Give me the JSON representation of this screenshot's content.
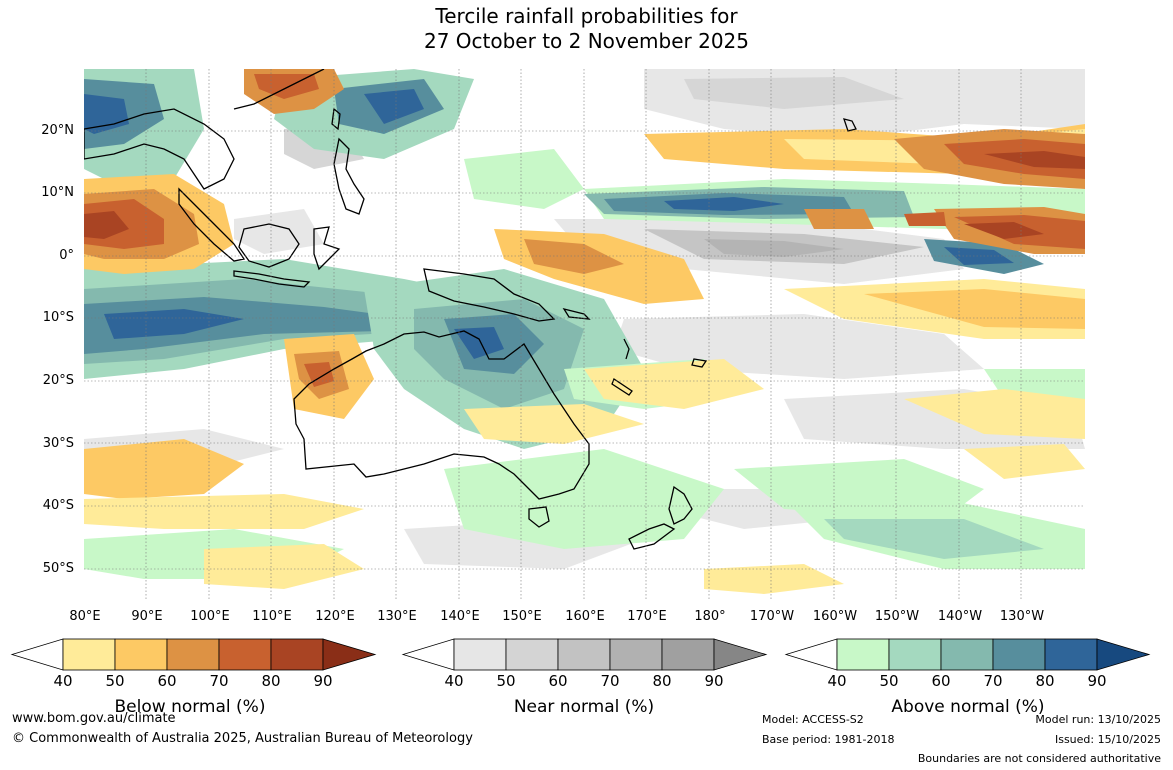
{
  "title": {
    "line1": "Tercile rainfall probabilities for",
    "line2": "27 October to 2 November 2025"
  },
  "map": {
    "lat_labels": [
      "20°N",
      "10°N",
      "0°",
      "10°S",
      "20°S",
      "30°S",
      "40°S",
      "50°S"
    ],
    "lon_labels": [
      "80°E",
      "90°E",
      "100°E",
      "110°E",
      "120°E",
      "130°E",
      "140°E",
      "150°E",
      "160°E",
      "170°E",
      "180°",
      "170°W",
      "160°W",
      "150°W",
      "140°W",
      "130°W"
    ]
  },
  "legends": {
    "tick_values": [
      "40",
      "50",
      "60",
      "70",
      "80",
      "90"
    ],
    "below": {
      "title": "Below normal (%)",
      "colors": [
        "#ffffff",
        "#ffeb99",
        "#fdc964",
        "#dd9244",
        "#c8612f",
        "#a94423",
        "#8a2e17"
      ]
    },
    "near": {
      "title": "Near normal (%)",
      "colors": [
        "#ffffff",
        "#e6e6e6",
        "#d4d4d4",
        "#c2c2c2",
        "#b1b1b1",
        "#a0a0a0",
        "#868686"
      ]
    },
    "above": {
      "title": "Above normal (%)",
      "colors": [
        "#ffffff",
        "#c8f8c8",
        "#a4d9bf",
        "#84b9ae",
        "#578e9d",
        "#2f6599",
        "#17497f"
      ]
    }
  },
  "footer": {
    "website": "www.bom.gov.au/climate",
    "copyright": "© Commonwealth of Australia 2025, Australian Bureau of Meteorology",
    "model": "Model: ACCESS-S2",
    "base_period": "Base period: 1981-2018",
    "model_run": "Model run: 13/10/2025",
    "issued": "Issued: 15/10/2025",
    "disclaimer": "Boundaries are not considered authoritative"
  }
}
